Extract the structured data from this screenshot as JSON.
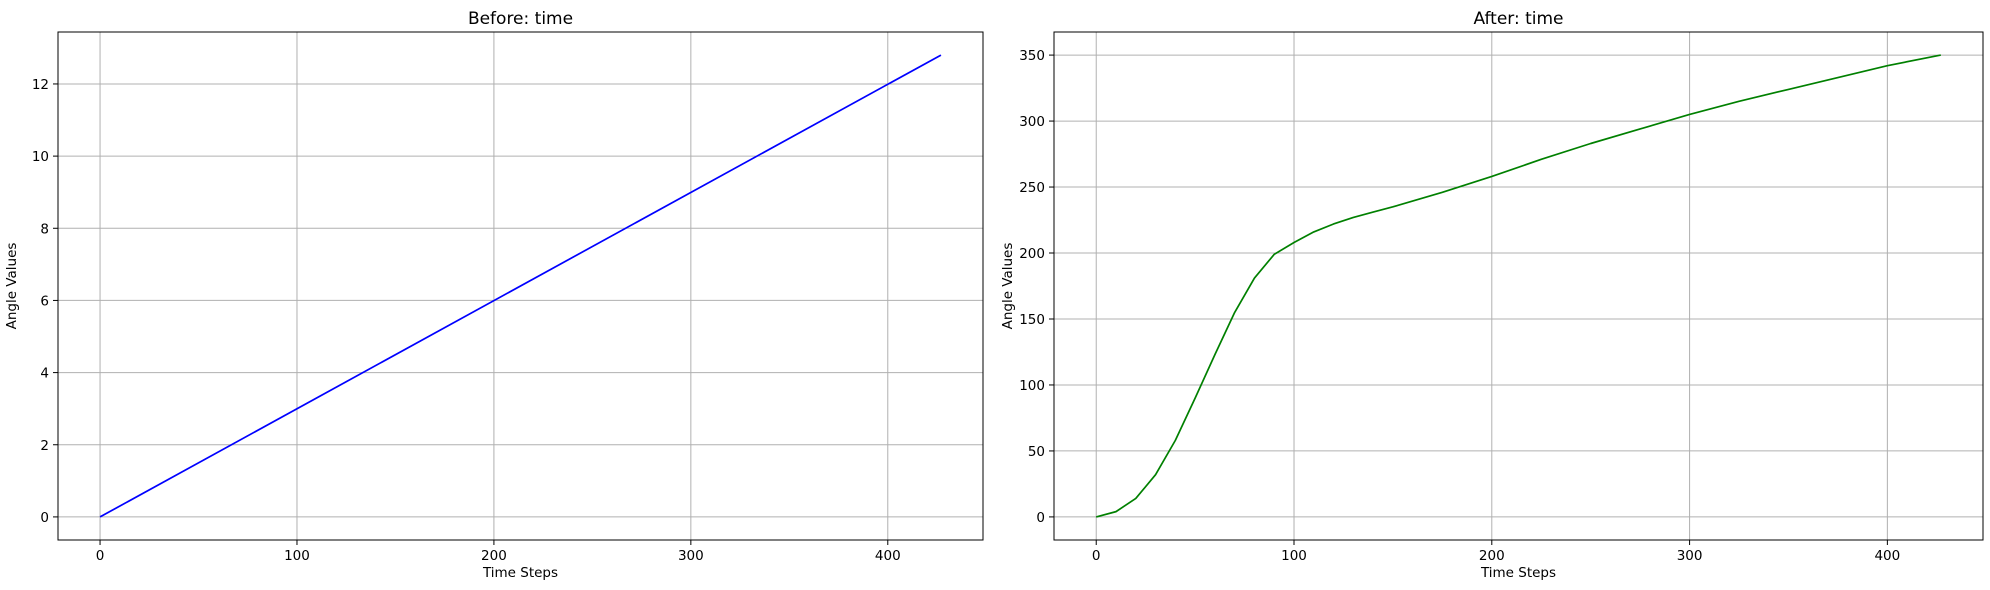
{
  "chart_data": [
    {
      "type": "line",
      "title": "Before: time",
      "xlabel": "Time Steps",
      "ylabel": "Angle Values",
      "xlim": [
        -21.35,
        448.35
      ],
      "ylim": [
        -0.64,
        13.44
      ],
      "xticks": [
        0,
        100,
        200,
        300,
        400
      ],
      "yticks": [
        0,
        2,
        4,
        6,
        8,
        10,
        12
      ],
      "grid": true,
      "series": [
        {
          "color": "#0000ff",
          "x": [
            0,
            427
          ],
          "y": [
            0,
            12.8
          ]
        }
      ]
    },
    {
      "type": "line",
      "title": "After: time",
      "xlabel": "Time Steps",
      "ylabel": "Angle Values",
      "xlim": [
        -21.35,
        448.35
      ],
      "ylim": [
        -17.5,
        367.5
      ],
      "xticks": [
        0,
        100,
        200,
        300,
        400
      ],
      "yticks": [
        0,
        50,
        100,
        150,
        200,
        250,
        300,
        350
      ],
      "grid": true,
      "series": [
        {
          "color": "#008000",
          "x": [
            0,
            10,
            20,
            30,
            40,
            50,
            60,
            70,
            80,
            90,
            100,
            110,
            120,
            130,
            140,
            150,
            175,
            200,
            225,
            250,
            275,
            300,
            325,
            350,
            375,
            400,
            427
          ],
          "y": [
            0,
            4,
            14,
            32,
            58,
            90,
            123,
            155,
            181,
            199,
            208,
            216,
            222,
            227,
            231,
            235,
            246,
            258,
            271,
            283,
            294,
            305,
            315,
            324,
            333,
            342,
            350
          ]
        }
      ]
    }
  ]
}
